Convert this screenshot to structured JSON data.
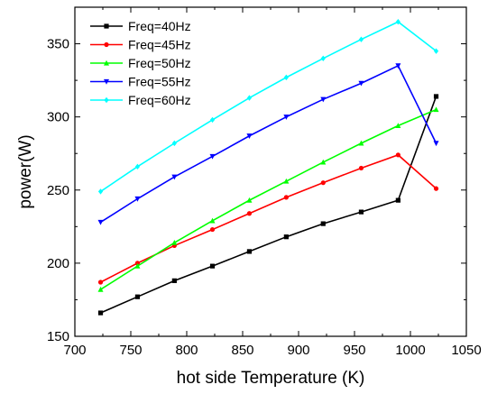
{
  "chart_data": {
    "type": "line",
    "title": "",
    "xlabel": "hot side Temperature (K)",
    "ylabel": "power(W)",
    "xlim": [
      700,
      1050
    ],
    "ylim": [
      150,
      375
    ],
    "x_ticks": [
      700,
      750,
      800,
      850,
      900,
      950,
      1000,
      1050
    ],
    "y_ticks": [
      150,
      200,
      250,
      300,
      350
    ],
    "grid": false,
    "legend_position": "top-left",
    "x": [
      723,
      756,
      789,
      823,
      856,
      889,
      922,
      956,
      989,
      1023
    ],
    "series": [
      {
        "name": "Freq=40Hz",
        "color": "#000000",
        "marker": "square",
        "values": [
          166,
          177,
          188,
          198,
          208,
          218,
          227,
          235,
          243,
          314
        ]
      },
      {
        "name": "Freq=45Hz",
        "color": "#ff0000",
        "marker": "circle",
        "values": [
          187,
          200,
          212,
          223,
          234,
          245,
          255,
          265,
          274,
          251
        ]
      },
      {
        "name": "Freq=50Hz",
        "color": "#00ff00",
        "marker": "triangle-up",
        "values": [
          182,
          198,
          214,
          229,
          243,
          256,
          269,
          282,
          294,
          305
        ]
      },
      {
        "name": "Freq=55Hz",
        "color": "#0000ff",
        "marker": "triangle-down",
        "values": [
          228,
          244,
          259,
          273,
          287,
          300,
          312,
          323,
          335,
          282
        ]
      },
      {
        "name": "Freq=60Hz",
        "color": "#00ffff",
        "marker": "diamond",
        "values": [
          249,
          266,
          282,
          298,
          313,
          327,
          340,
          353,
          365,
          345
        ]
      }
    ]
  }
}
